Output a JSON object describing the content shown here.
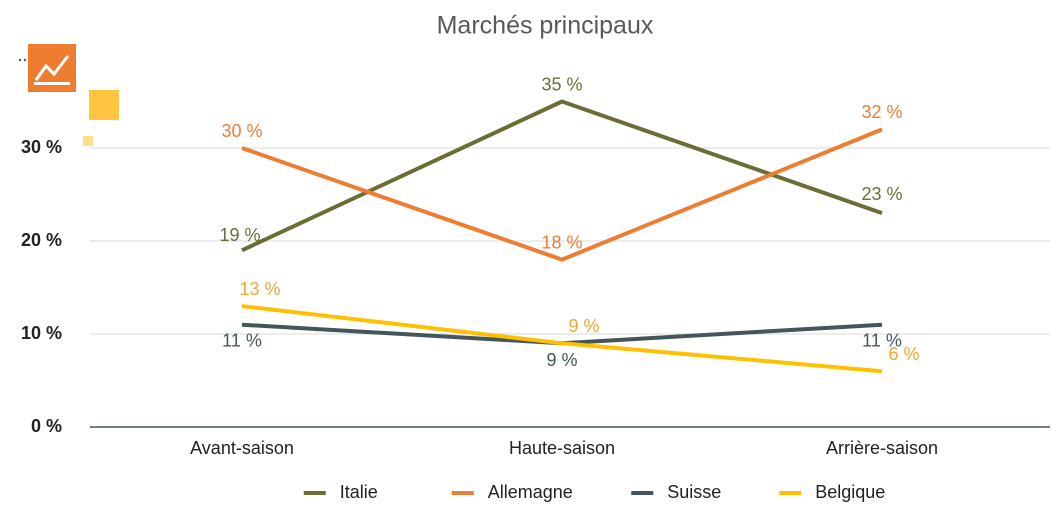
{
  "chart_data": {
    "type": "line",
    "title": "Marchés principaux",
    "categories": [
      "Avant-saison",
      "Haute-saison",
      "Arrière-saison"
    ],
    "series": [
      {
        "name": "Italie",
        "color": "#6b6e34",
        "values": [
          19,
          35,
          23
        ],
        "value_labels": [
          "19 %",
          "35 %",
          "23 %"
        ]
      },
      {
        "name": "Allemagne",
        "color": "#ee7d31",
        "values": [
          30,
          18,
          32
        ],
        "value_labels": [
          "30 %",
          "18 %",
          "32 %"
        ]
      },
      {
        "name": "Suisse",
        "color": "#44565a",
        "values": [
          11,
          9,
          11
        ],
        "value_labels": [
          "11 %",
          "9 %",
          "11 %"
        ]
      },
      {
        "name": "Belgique",
        "color": "#ffc000",
        "values": [
          13,
          9,
          6
        ],
        "value_labels": [
          "13 %",
          "9 %",
          "6 %"
        ]
      }
    ],
    "ylim": [
      0,
      40
    ],
    "yticks": [
      {
        "value": 0,
        "label": "0 %"
      },
      {
        "value": 10,
        "label": "10 %"
      },
      {
        "value": 20,
        "label": "20 %"
      },
      {
        "value": 30,
        "label": "30 %"
      }
    ],
    "grid": true,
    "legend": "bottom"
  }
}
